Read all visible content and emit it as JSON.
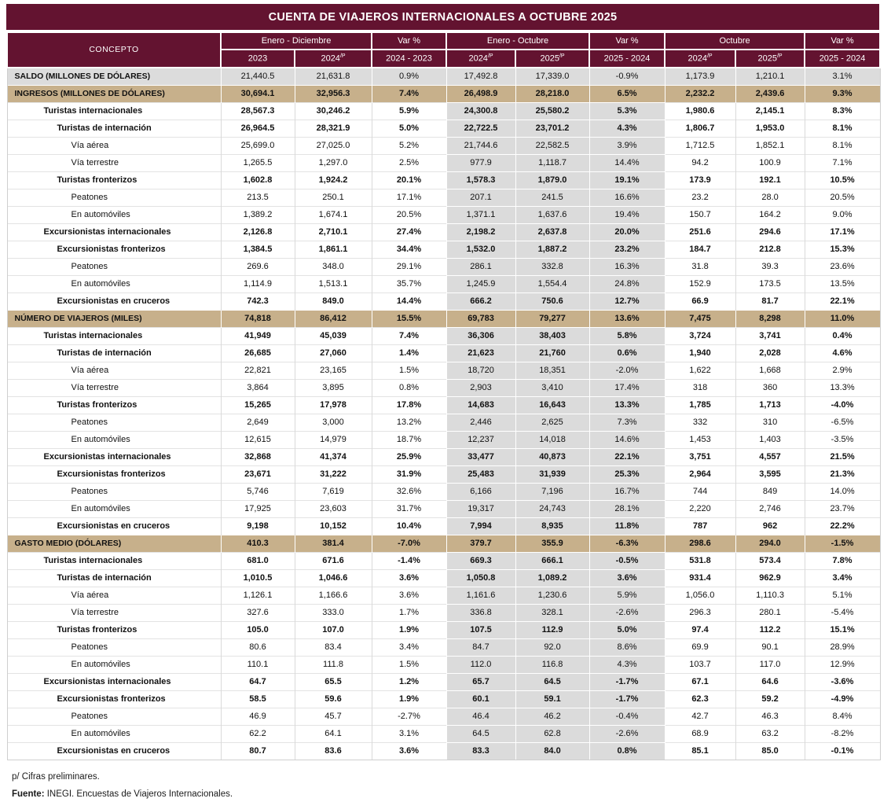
{
  "title": "CUENTA DE VIAJEROS INTERNACIONALES A OCTUBRE 2025",
  "colors": {
    "maroon": "#631330",
    "tan": "#C7B08B",
    "gray_row": "#DCDCDC",
    "mid_shade": "#DBDBDB"
  },
  "header": {
    "concept": "CONCEPTO",
    "groups": [
      {
        "label": "Enero - Diciembre"
      },
      {
        "label": "Var %"
      },
      {
        "label": "Enero - Octubre"
      },
      {
        "label": "Var %"
      },
      {
        "label": "Octubre"
      },
      {
        "label": "Var %"
      }
    ],
    "sub": [
      {
        "text": "2023",
        "sup": ""
      },
      {
        "text": "2024",
        "sup": "/P"
      },
      {
        "text": "2024 - 2023",
        "sup": ""
      },
      {
        "text": "2024",
        "sup": "/P"
      },
      {
        "text": "2025",
        "sup": "/P"
      },
      {
        "text": "2025 - 2024",
        "sup": ""
      },
      {
        "text": "2024",
        "sup": "/P"
      },
      {
        "text": "2025",
        "sup": "/P"
      },
      {
        "text": "2025 - 2024",
        "sup": ""
      }
    ]
  },
  "rows": [
    {
      "label": "SALDO (MILLONES DE DÓLARES)",
      "style": "section-gray",
      "indent": 0,
      "values": [
        "21,440.5",
        "21,631.8",
        "0.9%",
        "17,492.8",
        "17,339.0",
        "-0.9%",
        "1,173.9",
        "1,210.1",
        "3.1%"
      ]
    },
    {
      "label": "INGRESOS (MILLONES DE DÓLARES)",
      "style": "section-tan",
      "indent": 0,
      "values": [
        "30,694.1",
        "32,956.3",
        "7.4%",
        "26,498.9",
        "28,218.0",
        "6.5%",
        "2,232.2",
        "2,439.6",
        "9.3%"
      ]
    },
    {
      "label": "Turistas internacionales",
      "style": "bold",
      "indent": 1,
      "values": [
        "28,567.3",
        "30,246.2",
        "5.9%",
        "24,300.8",
        "25,580.2",
        "5.3%",
        "1,980.6",
        "2,145.1",
        "8.3%"
      ]
    },
    {
      "label": "Turistas de internación",
      "style": "bold",
      "indent": 2,
      "values": [
        "26,964.5",
        "28,321.9",
        "5.0%",
        "22,722.5",
        "23,701.2",
        "4.3%",
        "1,806.7",
        "1,953.0",
        "8.1%"
      ]
    },
    {
      "label": "Vía aérea",
      "style": "normal",
      "indent": 3,
      "values": [
        "25,699.0",
        "27,025.0",
        "5.2%",
        "21,744.6",
        "22,582.5",
        "3.9%",
        "1,712.5",
        "1,852.1",
        "8.1%"
      ]
    },
    {
      "label": "Vía terrestre",
      "style": "normal",
      "indent": 3,
      "values": [
        "1,265.5",
        "1,297.0",
        "2.5%",
        "977.9",
        "1,118.7",
        "14.4%",
        "94.2",
        "100.9",
        "7.1%"
      ]
    },
    {
      "label": "Turistas fronterizos",
      "style": "bold",
      "indent": 2,
      "values": [
        "1,602.8",
        "1,924.2",
        "20.1%",
        "1,578.3",
        "1,879.0",
        "19.1%",
        "173.9",
        "192.1",
        "10.5%"
      ]
    },
    {
      "label": "Peatones",
      "style": "normal",
      "indent": 3,
      "values": [
        "213.5",
        "250.1",
        "17.1%",
        "207.1",
        "241.5",
        "16.6%",
        "23.2",
        "28.0",
        "20.5%"
      ]
    },
    {
      "label": "En automóviles",
      "style": "normal",
      "indent": 3,
      "values": [
        "1,389.2",
        "1,674.1",
        "20.5%",
        "1,371.1",
        "1,637.6",
        "19.4%",
        "150.7",
        "164.2",
        "9.0%"
      ]
    },
    {
      "label": "Excursionistas internacionales",
      "style": "bold",
      "indent": 1,
      "values": [
        "2,126.8",
        "2,710.1",
        "27.4%",
        "2,198.2",
        "2,637.8",
        "20.0%",
        "251.6",
        "294.6",
        "17.1%"
      ]
    },
    {
      "label": "Excursionistas fronterizos",
      "style": "bold",
      "indent": 2,
      "values": [
        "1,384.5",
        "1,861.1",
        "34.4%",
        "1,532.0",
        "1,887.2",
        "23.2%",
        "184.7",
        "212.8",
        "15.3%"
      ]
    },
    {
      "label": "Peatones",
      "style": "normal",
      "indent": 3,
      "values": [
        "269.6",
        "348.0",
        "29.1%",
        "286.1",
        "332.8",
        "16.3%",
        "31.8",
        "39.3",
        "23.6%"
      ]
    },
    {
      "label": "En automóviles",
      "style": "normal",
      "indent": 3,
      "values": [
        "1,114.9",
        "1,513.1",
        "35.7%",
        "1,245.9",
        "1,554.4",
        "24.8%",
        "152.9",
        "173.5",
        "13.5%"
      ]
    },
    {
      "label": "Excursionistas en cruceros",
      "style": "bold",
      "indent": 2,
      "values": [
        "742.3",
        "849.0",
        "14.4%",
        "666.2",
        "750.6",
        "12.7%",
        "66.9",
        "81.7",
        "22.1%"
      ]
    },
    {
      "label": "NÚMERO DE VIAJEROS (MILES)",
      "style": "section-tan",
      "indent": 0,
      "values": [
        "74,818",
        "86,412",
        "15.5%",
        "69,783",
        "79,277",
        "13.6%",
        "7,475",
        "8,298",
        "11.0%"
      ]
    },
    {
      "label": "Turistas internacionales",
      "style": "bold",
      "indent": 1,
      "values": [
        "41,949",
        "45,039",
        "7.4%",
        "36,306",
        "38,403",
        "5.8%",
        "3,724",
        "3,741",
        "0.4%"
      ]
    },
    {
      "label": "Turistas de internación",
      "style": "bold",
      "indent": 2,
      "values": [
        "26,685",
        "27,060",
        "1.4%",
        "21,623",
        "21,760",
        "0.6%",
        "1,940",
        "2,028",
        "4.6%"
      ]
    },
    {
      "label": "Vía aérea",
      "style": "normal",
      "indent": 3,
      "values": [
        "22,821",
        "23,165",
        "1.5%",
        "18,720",
        "18,351",
        "-2.0%",
        "1,622",
        "1,668",
        "2.9%"
      ]
    },
    {
      "label": "Vía terrestre",
      "style": "normal",
      "indent": 3,
      "values": [
        "3,864",
        "3,895",
        "0.8%",
        "2,903",
        "3,410",
        "17.4%",
        "318",
        "360",
        "13.3%"
      ]
    },
    {
      "label": "Turistas fronterizos",
      "style": "bold",
      "indent": 2,
      "values": [
        "15,265",
        "17,978",
        "17.8%",
        "14,683",
        "16,643",
        "13.3%",
        "1,785",
        "1,713",
        "-4.0%"
      ]
    },
    {
      "label": "Peatones",
      "style": "normal",
      "indent": 3,
      "values": [
        "2,649",
        "3,000",
        "13.2%",
        "2,446",
        "2,625",
        "7.3%",
        "332",
        "310",
        "-6.5%"
      ]
    },
    {
      "label": "En automóviles",
      "style": "normal",
      "indent": 3,
      "values": [
        "12,615",
        "14,979",
        "18.7%",
        "12,237",
        "14,018",
        "14.6%",
        "1,453",
        "1,403",
        "-3.5%"
      ]
    },
    {
      "label": "Excursionistas internacionales",
      "style": "bold",
      "indent": 1,
      "values": [
        "32,868",
        "41,374",
        "25.9%",
        "33,477",
        "40,873",
        "22.1%",
        "3,751",
        "4,557",
        "21.5%"
      ]
    },
    {
      "label": "Excursionistas fronterizos",
      "style": "bold",
      "indent": 2,
      "values": [
        "23,671",
        "31,222",
        "31.9%",
        "25,483",
        "31,939",
        "25.3%",
        "2,964",
        "3,595",
        "21.3%"
      ]
    },
    {
      "label": "Peatones",
      "style": "normal",
      "indent": 3,
      "values": [
        "5,746",
        "7,619",
        "32.6%",
        "6,166",
        "7,196",
        "16.7%",
        "744",
        "849",
        "14.0%"
      ]
    },
    {
      "label": "En automóviles",
      "style": "normal",
      "indent": 3,
      "values": [
        "17,925",
        "23,603",
        "31.7%",
        "19,317",
        "24,743",
        "28.1%",
        "2,220",
        "2,746",
        "23.7%"
      ]
    },
    {
      "label": "Excursionistas en cruceros",
      "style": "bold",
      "indent": 2,
      "values": [
        "9,198",
        "10,152",
        "10.4%",
        "7,994",
        "8,935",
        "11.8%",
        "787",
        "962",
        "22.2%"
      ]
    },
    {
      "label": "GASTO MEDIO (DÓLARES)",
      "style": "section-tan",
      "indent": 0,
      "values": [
        "410.3",
        "381.4",
        "-7.0%",
        "379.7",
        "355.9",
        "-6.3%",
        "298.6",
        "294.0",
        "-1.5%"
      ]
    },
    {
      "label": "Turistas internacionales",
      "style": "bold",
      "indent": 1,
      "values": [
        "681.0",
        "671.6",
        "-1.4%",
        "669.3",
        "666.1",
        "-0.5%",
        "531.8",
        "573.4",
        "7.8%"
      ]
    },
    {
      "label": "Turistas de internación",
      "style": "bold",
      "indent": 2,
      "values": [
        "1,010.5",
        "1,046.6",
        "3.6%",
        "1,050.8",
        "1,089.2",
        "3.6%",
        "931.4",
        "962.9",
        "3.4%"
      ]
    },
    {
      "label": "Vía aérea",
      "style": "normal",
      "indent": 3,
      "values": [
        "1,126.1",
        "1,166.6",
        "3.6%",
        "1,161.6",
        "1,230.6",
        "5.9%",
        "1,056.0",
        "1,110.3",
        "5.1%"
      ]
    },
    {
      "label": "Vía terrestre",
      "style": "normal",
      "indent": 3,
      "values": [
        "327.6",
        "333.0",
        "1.7%",
        "336.8",
        "328.1",
        "-2.6%",
        "296.3",
        "280.1",
        "-5.4%"
      ]
    },
    {
      "label": "Turistas fronterizos",
      "style": "bold",
      "indent": 2,
      "values": [
        "105.0",
        "107.0",
        "1.9%",
        "107.5",
        "112.9",
        "5.0%",
        "97.4",
        "112.2",
        "15.1%"
      ]
    },
    {
      "label": "Peatones",
      "style": "normal",
      "indent": 3,
      "values": [
        "80.6",
        "83.4",
        "3.4%",
        "84.7",
        "92.0",
        "8.6%",
        "69.9",
        "90.1",
        "28.9%"
      ]
    },
    {
      "label": "En automóviles",
      "style": "normal",
      "indent": 3,
      "values": [
        "110.1",
        "111.8",
        "1.5%",
        "112.0",
        "116.8",
        "4.3%",
        "103.7",
        "117.0",
        "12.9%"
      ]
    },
    {
      "label": "Excursionistas internacionales",
      "style": "bold",
      "indent": 1,
      "values": [
        "64.7",
        "65.5",
        "1.2%",
        "65.7",
        "64.5",
        "-1.7%",
        "67.1",
        "64.6",
        "-3.6%"
      ]
    },
    {
      "label": "Excursionistas fronterizos",
      "style": "bold",
      "indent": 2,
      "values": [
        "58.5",
        "59.6",
        "1.9%",
        "60.1",
        "59.1",
        "-1.7%",
        "62.3",
        "59.2",
        "-4.9%"
      ]
    },
    {
      "label": "Peatones",
      "style": "normal",
      "indent": 3,
      "values": [
        "46.9",
        "45.7",
        "-2.7%",
        "46.4",
        "46.2",
        "-0.4%",
        "42.7",
        "46.3",
        "8.4%"
      ]
    },
    {
      "label": "En automóviles",
      "style": "normal",
      "indent": 3,
      "values": [
        "62.2",
        "64.1",
        "3.1%",
        "64.5",
        "62.8",
        "-2.6%",
        "68.9",
        "63.2",
        "-8.2%"
      ]
    },
    {
      "label": "Excursionistas en cruceros",
      "style": "bold",
      "indent": 2,
      "values": [
        "80.7",
        "83.6",
        "3.6%",
        "83.3",
        "84.0",
        "0.8%",
        "85.1",
        "85.0",
        "-0.1%"
      ]
    }
  ],
  "footnotes": {
    "prelim_prefix": "p/",
    "prelim_text": " Cifras preliminares.",
    "source_label": "Fuente:",
    "source_text": " INEGI. Encuestas de Viajeros Internacionales."
  }
}
